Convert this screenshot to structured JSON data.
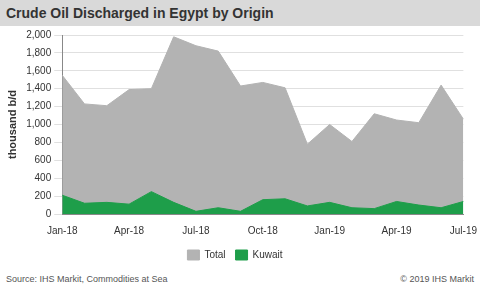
{
  "chart_data": {
    "type": "area",
    "title": "Crude Oil Discharged in Egypt by Origin",
    "ylabel": "thousand b/d",
    "source": "Source: IHS Markit, Commodities at Sea",
    "copyright": "© 2019 IHS Markit",
    "categories": [
      "Jan-18",
      null,
      null,
      "Apr-18",
      null,
      null,
      "Jul-18",
      null,
      null,
      "Oct-18",
      null,
      null,
      "Jan-19",
      null,
      null,
      "Apr-19",
      null,
      null,
      "Jul-19"
    ],
    "series": [
      {
        "name": "Total",
        "color": "#b3b3b3",
        "values": [
          1550,
          1230,
          1210,
          1390,
          1400,
          1980,
          1880,
          1820,
          1430,
          1470,
          1410,
          780,
          1000,
          810,
          1120,
          1050,
          1020,
          1440,
          1060
        ]
      },
      {
        "name": "Kuwait",
        "color": "#1e9e4a",
        "values": [
          210,
          120,
          130,
          110,
          250,
          130,
          30,
          70,
          30,
          160,
          170,
          90,
          130,
          70,
          60,
          140,
          100,
          70,
          140
        ]
      }
    ],
    "ylim": [
      0,
      2000
    ],
    "yticks": [
      0,
      200,
      400,
      600,
      800,
      {
        "value": 1000,
        "label": "1,000"
      },
      {
        "value": 1200,
        "label": "1,200"
      },
      {
        "value": 1400,
        "label": "1,400"
      },
      {
        "value": 1600,
        "label": "1,600"
      },
      {
        "value": 1800,
        "label": "1,800"
      },
      {
        "value": 2000,
        "label": "2,000"
      }
    ],
    "grid": true,
    "legend": "bottom"
  }
}
